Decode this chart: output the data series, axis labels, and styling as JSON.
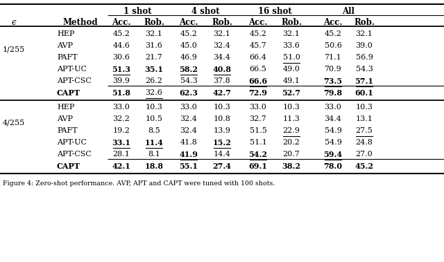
{
  "caption": "Figure 4: Zero-shot performance. AVP, APT and CAPT were tuned with 100 shots.",
  "col_groups": [
    "1 shot",
    "4 shot",
    "16 shot",
    "All"
  ],
  "sub_cols": [
    "Acc.",
    "Rob."
  ],
  "row_col1": "ϵ",
  "row_col2": "Method",
  "epsilon_groups": [
    {
      "epsilon": "1/255",
      "methods": [
        "HEP",
        "AVP",
        "PAFT",
        "APT-UC",
        "APT-CSC",
        "CAPT"
      ],
      "is_capt": [
        false,
        false,
        false,
        false,
        false,
        true
      ],
      "data": [
        [
          45.2,
          32.1,
          45.2,
          32.1,
          45.2,
          32.1,
          45.2,
          32.1
        ],
        [
          44.6,
          31.6,
          45.0,
          32.4,
          45.7,
          33.6,
          50.6,
          39.0
        ],
        [
          30.6,
          21.7,
          46.9,
          34.4,
          66.4,
          51.0,
          71.1,
          56.9
        ],
        [
          51.3,
          35.1,
          58.2,
          40.8,
          66.5,
          49.0,
          70.9,
          54.3
        ],
        [
          39.9,
          26.2,
          54.3,
          37.8,
          66.6,
          49.1,
          73.5,
          57.1
        ],
        [
          51.8,
          32.6,
          62.3,
          42.7,
          72.9,
          52.7,
          79.8,
          60.1
        ]
      ],
      "bold": [
        [
          false,
          false,
          false,
          false,
          false,
          false,
          false,
          false
        ],
        [
          false,
          false,
          false,
          false,
          false,
          false,
          false,
          false
        ],
        [
          false,
          false,
          false,
          false,
          false,
          false,
          false,
          false
        ],
        [
          true,
          true,
          true,
          true,
          false,
          false,
          false,
          false
        ],
        [
          false,
          false,
          false,
          false,
          true,
          false,
          true,
          true
        ],
        [
          true,
          false,
          true,
          true,
          true,
          true,
          true,
          true
        ]
      ],
      "underline": [
        [
          false,
          false,
          false,
          false,
          false,
          false,
          false,
          false
        ],
        [
          false,
          false,
          false,
          false,
          false,
          false,
          false,
          false
        ],
        [
          false,
          false,
          false,
          false,
          false,
          true,
          false,
          false
        ],
        [
          true,
          false,
          true,
          true,
          false,
          false,
          false,
          false
        ],
        [
          false,
          false,
          false,
          false,
          true,
          false,
          true,
          true
        ],
        [
          false,
          true,
          false,
          false,
          false,
          false,
          false,
          false
        ]
      ]
    },
    {
      "epsilon": "4/255",
      "methods": [
        "HEP",
        "AVP",
        "PAFT",
        "APT-UC",
        "APT-CSC",
        "CAPT"
      ],
      "is_capt": [
        false,
        false,
        false,
        false,
        false,
        true
      ],
      "data": [
        [
          33.0,
          10.3,
          33.0,
          10.3,
          33.0,
          10.3,
          33.0,
          10.3
        ],
        [
          32.2,
          10.5,
          32.4,
          10.8,
          32.7,
          11.3,
          34.4,
          13.1
        ],
        [
          19.2,
          8.5,
          32.4,
          13.9,
          51.5,
          22.9,
          54.9,
          27.5
        ],
        [
          33.1,
          11.4,
          41.8,
          15.2,
          51.1,
          20.2,
          54.9,
          24.8
        ],
        [
          28.1,
          8.1,
          41.9,
          14.4,
          54.2,
          20.7,
          59.4,
          27.0
        ],
        [
          42.1,
          18.8,
          55.1,
          27.4,
          69.1,
          38.2,
          78.0,
          45.2
        ]
      ],
      "bold": [
        [
          false,
          false,
          false,
          false,
          false,
          false,
          false,
          false
        ],
        [
          false,
          false,
          false,
          false,
          false,
          false,
          false,
          false
        ],
        [
          false,
          false,
          false,
          false,
          false,
          false,
          false,
          false
        ],
        [
          true,
          true,
          false,
          true,
          false,
          false,
          false,
          false
        ],
        [
          false,
          false,
          true,
          false,
          true,
          false,
          true,
          false
        ],
        [
          true,
          true,
          true,
          true,
          true,
          true,
          true,
          true
        ]
      ],
      "underline": [
        [
          false,
          false,
          false,
          false,
          false,
          false,
          false,
          false
        ],
        [
          false,
          false,
          false,
          false,
          false,
          false,
          false,
          false
        ],
        [
          false,
          false,
          false,
          false,
          false,
          true,
          false,
          true
        ],
        [
          true,
          true,
          false,
          true,
          false,
          false,
          false,
          false
        ],
        [
          false,
          false,
          true,
          false,
          true,
          false,
          true,
          false
        ],
        [
          false,
          false,
          false,
          false,
          false,
          false,
          false,
          false
        ]
      ]
    }
  ]
}
